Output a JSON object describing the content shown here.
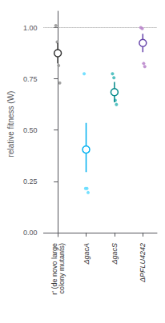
{
  "chart_data": {
    "type": "scatter",
    "ylabel": "relative fitness (W)",
    "categories": [
      "r' (de novo large\ncolony mutants)",
      "ΔgacA",
      "ΔgacS",
      "ΔPFLU4242"
    ],
    "points": [
      [
        1.01,
        0.93,
        0.815,
        0.73
      ],
      [
        0.775,
        0.215,
        0.215,
        0.195
      ],
      [
        0.775,
        0.755,
        0.645,
        0.625
      ],
      [
        1.0,
        0.995,
        0.825,
        0.81
      ]
    ],
    "means": [
      0.875,
      0.405,
      0.685,
      0.925
    ],
    "ci_low": [
      0.825,
      0.295,
      0.635,
      0.88
    ],
    "ci_high": [
      0.925,
      0.535,
      0.735,
      0.97
    ],
    "colors": [
      "#333333",
      "#00b0f0",
      "#008888",
      "#6644aa"
    ],
    "point_colors": [
      "#999999",
      "#66ddff",
      "#44bbbb",
      "#bb88cc"
    ],
    "reference_line": {
      "y": 1.0,
      "color": "#999999",
      "line_style": "dotted"
    },
    "ylim": [
      -0.02,
      1.08
    ],
    "yticks": [
      {
        "value": 0,
        "label": "0.00"
      },
      {
        "value": 0.25,
        "label": "0.25"
      },
      {
        "value": 0.5,
        "label": "0.50"
      },
      {
        "value": 0.75,
        "label": "0.75"
      },
      {
        "value": 1.0,
        "label": "1.00"
      }
    ],
    "grid": false
  }
}
